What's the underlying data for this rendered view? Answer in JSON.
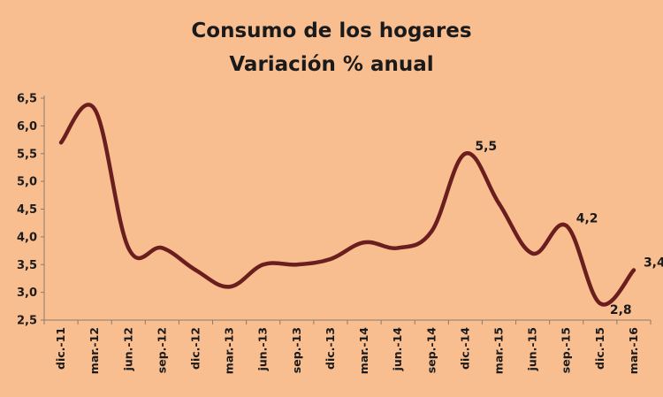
{
  "chart_data": {
    "type": "line",
    "title": "Consumo de los hogares",
    "subtitle": "Variación % anual",
    "xlabel": "",
    "ylabel": "",
    "ylim": [
      2.5,
      6.5
    ],
    "yticks": [
      "2,5",
      "3,0",
      "3,5",
      "4,0",
      "4,5",
      "5,0",
      "5,5",
      "6,0",
      "6,5"
    ],
    "ytick_values": [
      2.5,
      3.0,
      3.5,
      4.0,
      4.5,
      5.0,
      5.5,
      6.0,
      6.5
    ],
    "categories": [
      "dic.-11",
      "mar.-12",
      "jun.-12",
      "sep.-12",
      "dic.-12",
      "mar.-13",
      "jun.-13",
      "sep.-13",
      "dic.-13",
      "mar.-14",
      "jun.-14",
      "sep.-14",
      "dic.-14",
      "mar.-15",
      "jun.-15",
      "sep.-15",
      "dic.-15",
      "mar.-16"
    ],
    "series": [
      {
        "values": [
          5.7,
          6.3,
          3.8,
          3.8,
          3.4,
          3.1,
          3.5,
          3.5,
          3.6,
          3.9,
          3.8,
          4.1,
          5.5,
          4.6,
          3.7,
          4.2,
          2.8,
          3.4
        ],
        "color": "#6B1E1E"
      }
    ],
    "data_labels": [
      {
        "index": 12,
        "text": "5,5",
        "position": "right"
      },
      {
        "index": 15,
        "text": "4,2",
        "position": "right"
      },
      {
        "index": 16,
        "text": "2,8",
        "position": "below-right"
      },
      {
        "index": 17,
        "text": "3,4",
        "position": "right"
      }
    ],
    "grid": false,
    "legend": "none",
    "background": "#F9BE90"
  }
}
